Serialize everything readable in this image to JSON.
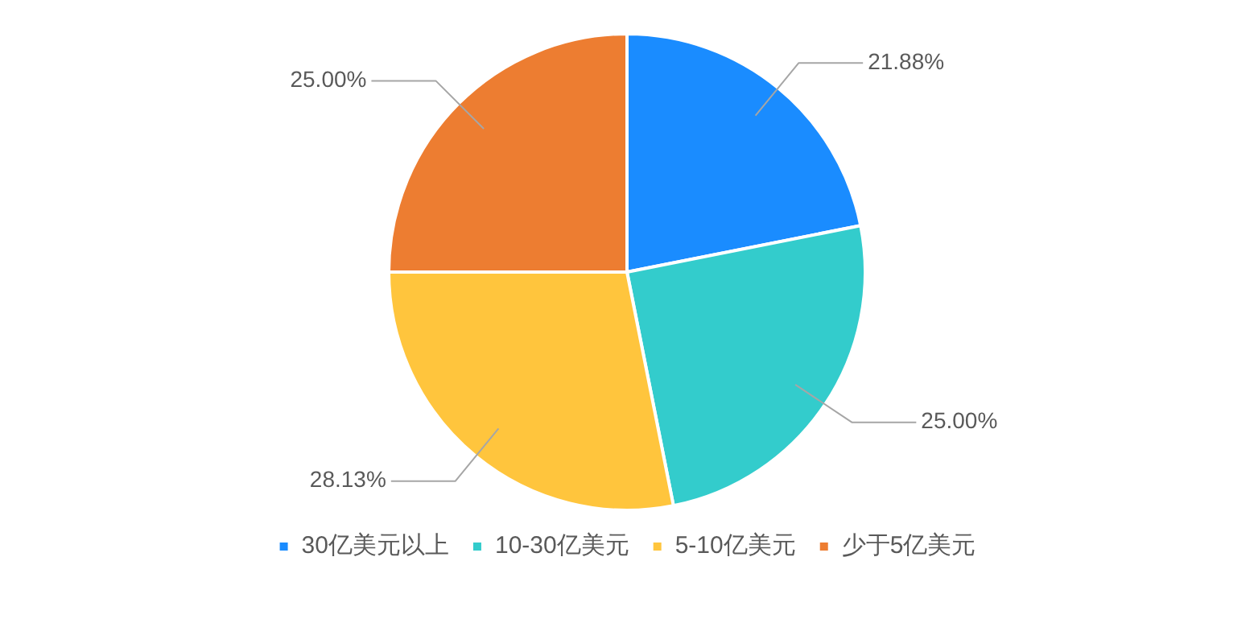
{
  "chart_data": {
    "type": "pie",
    "categories": [
      "30亿美元以上",
      "10-30亿美元",
      "5-10亿美元",
      "少于5亿美元"
    ],
    "values": [
      21.88,
      25.0,
      28.13,
      25.0
    ],
    "colors": [
      "#1a8cff",
      "#33cccc",
      "#ffc53d",
      "#ed7d31"
    ],
    "value_labels": [
      "21.88%",
      "25.00%",
      "28.13%",
      "25.00%"
    ],
    "legend": "bottom"
  }
}
